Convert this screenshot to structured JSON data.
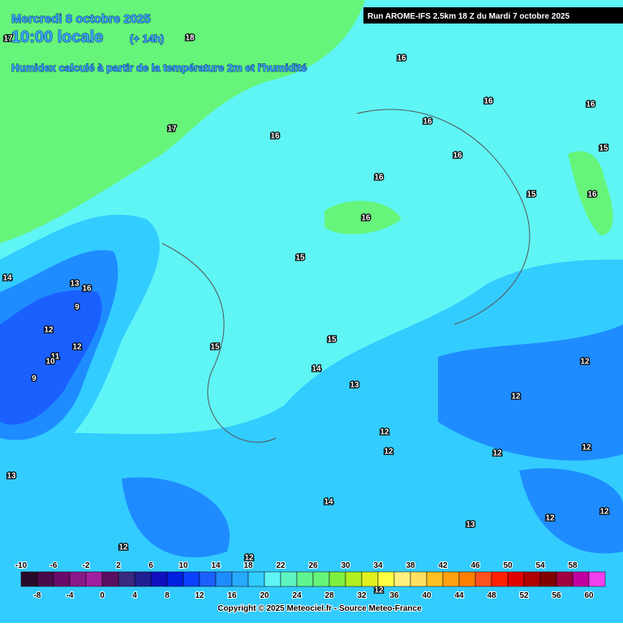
{
  "header": {
    "date": "Mercredi 8 octobre 2025",
    "time": "10:00 locale",
    "lead": "(+ 14h)",
    "description": "Humidex calculé à partir de la température 2m et l'humidité"
  },
  "run": "Run AROME-IFS 2.5km 18 Z du Mardi 7 octobre 2025",
  "contour_labels": [
    17,
    18,
    16,
    16,
    16,
    16,
    17,
    16,
    16,
    15,
    16,
    15,
    16,
    16,
    15,
    14,
    13,
    16,
    9,
    12,
    12,
    11,
    10,
    9,
    15,
    15,
    14,
    12,
    13,
    12,
    12,
    12,
    12,
    12,
    13,
    14,
    12,
    13,
    12,
    12,
    12,
    12
  ],
  "colorbar": {
    "top_labels": [
      -10,
      -6,
      -2,
      2,
      6,
      10,
      14,
      18,
      22,
      26,
      30,
      34,
      38,
      42,
      46,
      50,
      54,
      58
    ],
    "bottom_labels": [
      -8,
      -4,
      0,
      4,
      8,
      12,
      16,
      20,
      24,
      28,
      32,
      36,
      40,
      44,
      48,
      52,
      56,
      60
    ],
    "colors": [
      "#2a0a2a",
      "#4a0a4a",
      "#6a0a6a",
      "#8a1a8a",
      "#a020a0",
      "#5a1060",
      "#3a2a80",
      "#202090",
      "#1010c0",
      "#0020e0",
      "#0a40ff",
      "#1a60ff",
      "#1e8cff",
      "#26aaff",
      "#33ccff",
      "#5ff5f5",
      "#5ff5c0",
      "#60f590",
      "#66f57a",
      "#80f040",
      "#b0f020",
      "#e0f020",
      "#ffff40",
      "#fff080",
      "#ffe060",
      "#ffc020",
      "#ffa010",
      "#ff8000",
      "#ff5020",
      "#ff2000",
      "#e00000",
      "#b00000",
      "#800000",
      "#a00040",
      "#c000a0",
      "#f040f0"
    ]
  },
  "copyright": "Copyright © 2025 Meteociel.fr - Source Meteo-France"
}
